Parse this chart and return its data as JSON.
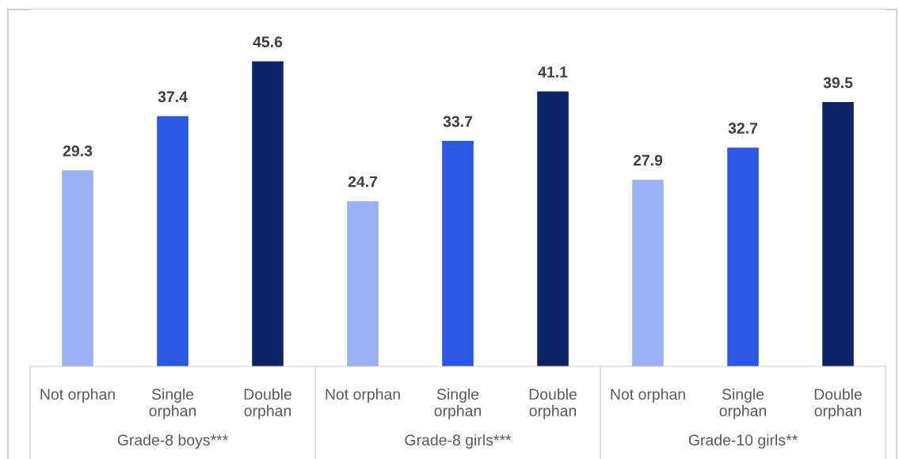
{
  "chart_data": {
    "type": "bar",
    "categories": [
      "Not orphan",
      "Single\norphan",
      "Double\norphan",
      "Not orphan",
      "Single\norphan",
      "Double\norphan",
      "Not orphan",
      "Single\norphan",
      "Double\norphan"
    ],
    "values": [
      29.3,
      37.4,
      45.6,
      24.7,
      33.7,
      41.1,
      27.9,
      32.7,
      39.5
    ],
    "colors": [
      "#9bb0f2",
      "#2b58e2",
      "#0d2366",
      "#9bb0f2",
      "#2b58e2",
      "#0d2366",
      "#9bb0f2",
      "#2b58e2",
      "#0d2366"
    ],
    "data_labels": true,
    "annotations": [
      "Grade-8 boys***",
      "Grade-8 girls***",
      "Grade-10 girls**"
    ],
    "grid": false,
    "legend": false
  }
}
